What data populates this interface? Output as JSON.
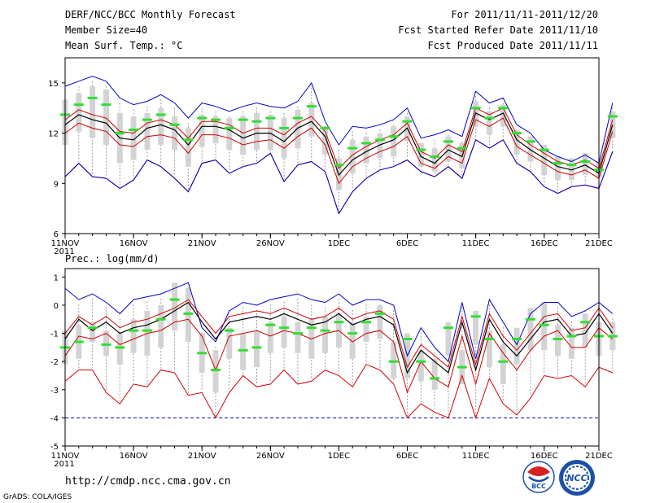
{
  "header": {
    "left": [
      "DERF/NCC/BCC Monthly Forecast",
      "Member Size=40",
      "Mean Surf. Temp.: °C"
    ],
    "right": [
      "For 2011/11/11-2011/12/20",
      "Fcst Started Refer Date 2011/11/10",
      "Fcst Produced Date 2011/11/11"
    ]
  },
  "footer": {
    "url": "http://cmdp.ncc.cma.gov.cn",
    "credit": "GrADS: COLA/IGES",
    "logo_bcc_text": "BCC",
    "logo_ncc_text": "NCC"
  },
  "colors": {
    "box": "#d3d3d3",
    "whisker": "#9a9a9a",
    "mean": "#000000",
    "spread": "#d00000",
    "extreme": "#0000c8",
    "median": "#33dd33",
    "floor": "#0000c8"
  },
  "chart_data": [
    {
      "type": "line",
      "title": "Mean Surf. Temp.: °C",
      "ylim": [
        6,
        16.5
      ],
      "yticks": [
        6,
        9,
        12,
        15
      ],
      "xlim": [
        0,
        39
      ],
      "xticks": [
        {
          "day": 0,
          "label": "11NOV"
        },
        {
          "day": 5,
          "label": "16NOV"
        },
        {
          "day": 10,
          "label": "21NOV"
        },
        {
          "day": 15,
          "label": "26NOV"
        },
        {
          "day": 20,
          "label": "1DEC"
        },
        {
          "day": 25,
          "label": "6DEC"
        },
        {
          "day": 30,
          "label": "11DEC"
        },
        {
          "day": 35,
          "label": "16DEC"
        },
        {
          "day": 39,
          "label": "21DEC"
        }
      ],
      "year_label": "2011",
      "series": [
        {
          "name": "mean",
          "values": [
            12.5,
            13.1,
            12.8,
            12.6,
            11.7,
            11.6,
            12.3,
            12.5,
            12.2,
            11.3,
            12.4,
            12.4,
            12.2,
            11.7,
            12.0,
            12.0,
            11.5,
            12.3,
            12.7,
            11.8,
            9.5,
            10.4,
            10.9,
            11.3,
            11.6,
            12.3,
            10.6,
            10.2,
            11.0,
            10.6,
            13.2,
            12.8,
            13.2,
            11.6,
            11.0,
            10.5,
            10.0,
            9.8,
            10.1,
            9.6,
            12.5
          ]
        },
        {
          "name": "upper",
          "values": [
            12.8,
            13.4,
            13.1,
            12.9,
            12.1,
            12.0,
            12.6,
            12.8,
            12.5,
            11.7,
            12.7,
            12.7,
            12.5,
            12.0,
            12.3,
            12.3,
            11.9,
            12.6,
            13.0,
            12.1,
            9.9,
            10.7,
            11.2,
            11.6,
            11.9,
            12.6,
            10.9,
            10.5,
            11.3,
            10.9,
            13.5,
            13.1,
            13.5,
            11.9,
            11.3,
            10.8,
            10.3,
            10.1,
            10.4,
            9.9,
            12.8
          ]
        },
        {
          "name": "lower",
          "values": [
            12.0,
            12.6,
            12.3,
            12.1,
            11.3,
            11.2,
            11.8,
            11.9,
            11.7,
            10.8,
            11.9,
            11.9,
            11.7,
            11.3,
            11.5,
            11.6,
            11.1,
            11.8,
            12.3,
            11.3,
            9.0,
            10.0,
            10.5,
            10.9,
            11.2,
            11.8,
            10.2,
            9.9,
            10.6,
            10.2,
            12.8,
            12.4,
            12.9,
            11.2,
            10.7,
            10.2,
            9.7,
            9.5,
            9.8,
            9.3,
            12.1
          ]
        },
        {
          "name": "max",
          "values": [
            14.8,
            15.1,
            15.4,
            15.1,
            14.1,
            13.7,
            13.9,
            14.3,
            13.8,
            12.9,
            13.8,
            13.6,
            13.3,
            13.6,
            13.8,
            13.6,
            13.5,
            13.9,
            15.0,
            12.7,
            11.3,
            12.4,
            12.3,
            12.5,
            12.8,
            13.5,
            11.7,
            11.9,
            12.2,
            11.8,
            14.5,
            13.8,
            14.1,
            12.5,
            12.0,
            11.0,
            10.6,
            10.3,
            10.7,
            10.2,
            13.8
          ]
        },
        {
          "name": "min",
          "values": [
            9.4,
            10.2,
            9.4,
            9.3,
            8.7,
            9.2,
            10.4,
            10.0,
            9.3,
            8.5,
            10.2,
            10.4,
            9.6,
            10.0,
            10.2,
            10.8,
            9.1,
            10.1,
            10.3,
            9.7,
            7.2,
            8.5,
            9.3,
            9.8,
            10.0,
            10.4,
            9.7,
            9.4,
            10.0,
            9.3,
            11.6,
            11.1,
            11.6,
            10.2,
            9.7,
            8.8,
            8.4,
            8.8,
            8.9,
            8.7,
            10.9
          ]
        },
        {
          "name": "median",
          "values": [
            13.1,
            13.7,
            14.1,
            13.7,
            12.0,
            12.2,
            12.8,
            13.1,
            12.5,
            11.6,
            12.9,
            12.8,
            12.3,
            12.8,
            12.7,
            12.9,
            12.3,
            12.9,
            13.6,
            12.3,
            10.1,
            11.1,
            11.4,
            11.6,
            11.8,
            12.7,
            11.0,
            10.6,
            11.5,
            11.1,
            13.5,
            12.9,
            13.5,
            12.0,
            11.5,
            11.0,
            10.2,
            10.1,
            10.3,
            9.8,
            13.0
          ]
        },
        {
          "name": "box_high",
          "values": [
            14.0,
            14.4,
            14.8,
            14.6,
            13.2,
            13.0,
            13.2,
            13.5,
            13.0,
            12.3,
            13.1,
            13.0,
            12.9,
            13.0,
            13.2,
            13.1,
            12.9,
            13.4,
            13.8,
            12.4,
            10.5,
            11.6,
            11.8,
            12.0,
            12.4,
            13.0,
            11.4,
            11.1,
            11.8,
            11.4,
            13.9,
            13.3,
            13.7,
            12.2,
            11.8,
            11.3,
            10.6,
            10.5,
            10.8,
            10.3,
            13.3
          ]
        },
        {
          "name": "box_low",
          "values": [
            11.3,
            12.1,
            11.7,
            11.3,
            10.2,
            10.4,
            11.0,
            11.3,
            11.0,
            10.0,
            11.2,
            11.4,
            11.0,
            10.7,
            11.0,
            11.0,
            10.5,
            11.1,
            11.8,
            10.7,
            8.6,
            9.6,
            10.2,
            10.5,
            10.6,
            11.5,
            10.0,
            9.7,
            10.3,
            9.9,
            12.4,
            11.9,
            12.4,
            10.7,
            10.3,
            9.5,
            9.2,
            9.2,
            9.5,
            9.3,
            11.7
          ]
        }
      ]
    },
    {
      "type": "line",
      "title": "Prec.: log(mm/d)",
      "ylim": [
        -5,
        1.3
      ],
      "yticks": [
        -5,
        -4,
        -3,
        -2,
        -1,
        0,
        1
      ],
      "floor": -4,
      "xlim": [
        0,
        39
      ],
      "xticks": [
        {
          "day": 0,
          "label": "11NOV"
        },
        {
          "day": 5,
          "label": "16NOV"
        },
        {
          "day": 10,
          "label": "21NOV"
        },
        {
          "day": 15,
          "label": "26NOV"
        },
        {
          "day": 20,
          "label": "1DEC"
        },
        {
          "day": 25,
          "label": "6DEC"
        },
        {
          "day": 30,
          "label": "11DEC"
        },
        {
          "day": 35,
          "label": "16DEC"
        },
        {
          "day": 39,
          "label": "21DEC"
        }
      ],
      "year_label": "2011",
      "series": [
        {
          "name": "mean",
          "values": [
            -1.2,
            -0.5,
            -0.9,
            -0.6,
            -1.0,
            -0.8,
            -0.7,
            -0.5,
            -0.2,
            0.1,
            -0.6,
            -1.2,
            -0.6,
            -0.5,
            -0.4,
            -0.5,
            -0.3,
            -0.5,
            -0.7,
            -0.6,
            -0.3,
            -0.7,
            -0.5,
            -0.4,
            -0.7,
            -2.4,
            -1.6,
            -2.0,
            -2.4,
            -0.6,
            -2.3,
            -0.5,
            -1.3,
            -1.8,
            -1.2,
            -0.6,
            -0.5,
            -1.1,
            -1.0,
            -0.3,
            -1.0
          ]
        },
        {
          "name": "upper",
          "values": [
            -1.0,
            -0.4,
            -0.7,
            -0.4,
            -0.8,
            -0.6,
            -0.5,
            -0.3,
            -0.1,
            0.2,
            -0.4,
            -1.0,
            -0.4,
            -0.3,
            -0.2,
            -0.3,
            -0.1,
            -0.3,
            -0.5,
            -0.4,
            -0.1,
            -0.5,
            -0.3,
            -0.2,
            -0.5,
            -2.2,
            -1.4,
            -1.8,
            -2.2,
            -0.4,
            -2.1,
            -0.3,
            -1.1,
            -1.6,
            -1.0,
            -0.4,
            -0.3,
            -0.9,
            -0.8,
            -0.1,
            -0.8
          ]
        },
        {
          "name": "lower",
          "values": [
            -1.8,
            -1.1,
            -1.2,
            -1.0,
            -1.4,
            -1.2,
            -1.0,
            -0.9,
            -0.6,
            -0.5,
            -1.1,
            -2.3,
            -1.1,
            -1.0,
            -0.9,
            -1.1,
            -0.9,
            -1.0,
            -1.2,
            -1.0,
            -0.9,
            -1.3,
            -1.0,
            -0.9,
            -1.3,
            -3.1,
            -2.0,
            -2.6,
            -2.9,
            -1.1,
            -2.8,
            -1.0,
            -1.7,
            -2.3,
            -1.6,
            -1.1,
            -0.9,
            -1.5,
            -1.5,
            -0.8,
            -1.2
          ]
        },
        {
          "name": "max",
          "values": [
            0.6,
            0.2,
            0.4,
            0.1,
            -0.3,
            0.2,
            0.3,
            0.4,
            0.6,
            0.8,
            -0.8,
            -1.3,
            -0.2,
            0.1,
            0.0,
            0.2,
            0.3,
            0.4,
            0.2,
            0.1,
            0.4,
            0.0,
            0.2,
            0.2,
            0.0,
            -1.8,
            -0.8,
            -1.5,
            -2.0,
            0.1,
            -1.9,
            0.2,
            -0.6,
            -1.4,
            -0.3,
            0.1,
            0.1,
            -0.4,
            -0.2,
            0.1,
            -0.3
          ]
        },
        {
          "name": "min",
          "values": [
            -2.7,
            -2.3,
            -2.3,
            -3.1,
            -3.5,
            -2.8,
            -2.9,
            -2.3,
            -2.4,
            -3.2,
            -3.1,
            -4.0,
            -3.1,
            -2.5,
            -2.9,
            -2.8,
            -2.3,
            -2.8,
            -2.7,
            -2.3,
            -2.5,
            -2.9,
            -2.1,
            -2.3,
            -2.8,
            -4.0,
            -3.5,
            -3.8,
            -4.0,
            -2.5,
            -4.0,
            -2.6,
            -3.5,
            -3.9,
            -3.3,
            -2.5,
            -2.6,
            -2.5,
            -2.9,
            -2.2,
            -2.4
          ]
        },
        {
          "name": "median",
          "values": [
            -1.5,
            -1.3,
            -0.8,
            -1.4,
            -1.5,
            -0.9,
            -0.9,
            -0.5,
            0.2,
            -0.3,
            -1.7,
            -2.3,
            -0.9,
            -1.6,
            -1.5,
            -0.7,
            -0.8,
            -1.0,
            -0.8,
            -0.9,
            -0.6,
            -1.0,
            -0.6,
            -0.3,
            -2.0,
            -1.2,
            -2.0,
            -2.6,
            -0.8,
            -2.2,
            -0.4,
            -1.2,
            -2.0,
            -1.2,
            -0.5,
            -0.7,
            -1.2,
            -1.1,
            -0.6,
            -1.1,
            -1.1
          ]
        },
        {
          "name": "box_high",
          "values": [
            -0.9,
            -0.7,
            -0.6,
            -0.9,
            -1.0,
            -0.5,
            -0.2,
            0.0,
            0.8,
            0.6,
            -1.0,
            -1.6,
            -0.8,
            -1.0,
            -0.9,
            -0.6,
            -0.4,
            -0.6,
            -0.5,
            -0.4,
            -0.3,
            -0.6,
            -0.4,
            0.0,
            -1.3,
            -1.0,
            -1.6,
            -1.9,
            -0.6,
            -1.6,
            -0.2,
            -0.9,
            -1.4,
            -0.8,
            -0.1,
            0.1,
            -0.7,
            -0.8,
            -0.3,
            -0.6,
            -0.6
          ]
        },
        {
          "name": "box_low",
          "values": [
            -2.1,
            -1.9,
            -1.3,
            -1.8,
            -2.1,
            -1.7,
            -1.8,
            -1.5,
            -0.9,
            -1.3,
            -2.4,
            -3.1,
            -1.9,
            -2.3,
            -2.2,
            -1.7,
            -1.5,
            -1.7,
            -1.9,
            -1.7,
            -1.5,
            -1.9,
            -1.3,
            -1.2,
            -2.6,
            -2.6,
            -2.7,
            -3.0,
            -1.8,
            -2.8,
            -1.4,
            -2.2,
            -2.8,
            -2.1,
            -1.6,
            -1.6,
            -1.8,
            -1.9,
            -1.5,
            -1.8,
            -1.6
          ]
        }
      ]
    }
  ]
}
